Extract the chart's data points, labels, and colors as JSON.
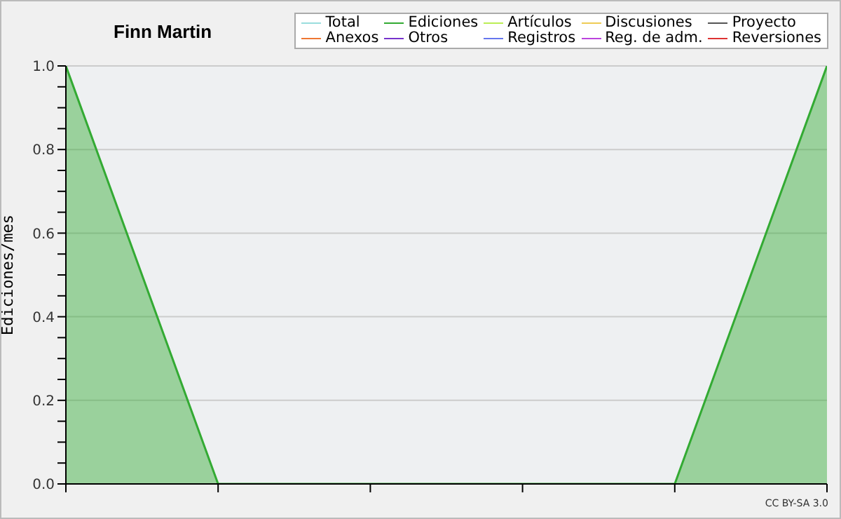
{
  "chart_data": {
    "type": "area",
    "title": "Finn Martin",
    "ylabel": "Ediciones/mes",
    "categories": [
      null,
      null,
      null,
      null,
      null,
      null
    ],
    "series": [
      {
        "name": "Total",
        "color": "#99dddd",
        "values": [
          null,
          null,
          null,
          null,
          null,
          null
        ]
      },
      {
        "name": "Ediciones",
        "color": "#33aa33",
        "values": [
          1,
          0,
          0,
          0,
          0,
          1
        ]
      },
      {
        "name": "Artículos",
        "color": "#bbee55",
        "values": [
          null,
          null,
          null,
          null,
          null,
          null
        ]
      },
      {
        "name": "Discusiones",
        "color": "#eecc55",
        "values": [
          null,
          null,
          null,
          null,
          null,
          null
        ]
      },
      {
        "name": "Proyecto",
        "color": "#555555",
        "values": [
          null,
          null,
          null,
          null,
          null,
          null
        ]
      },
      {
        "name": "Anexos",
        "color": "#ee7733",
        "values": [
          null,
          null,
          null,
          null,
          null,
          null
        ]
      },
      {
        "name": "Otros",
        "color": "#7733cc",
        "values": [
          null,
          null,
          null,
          null,
          null,
          null
        ]
      },
      {
        "name": "Registros",
        "color": "#6677ee",
        "values": [
          null,
          null,
          null,
          null,
          null,
          null
        ]
      },
      {
        "name": "Reg. de adm.",
        "color": "#bb44dd",
        "values": [
          null,
          null,
          null,
          null,
          null,
          null
        ]
      },
      {
        "name": "Reversiones",
        "color": "#dd3333",
        "values": [
          null,
          null,
          null,
          null,
          null,
          null
        ]
      }
    ],
    "ylim": [
      0,
      1
    ],
    "yticks": [
      {
        "value": 0,
        "label": "0.0"
      },
      {
        "value": 0.05,
        "label": null
      },
      {
        "value": 0.1,
        "label": null
      },
      {
        "value": 0.15,
        "label": null
      },
      {
        "value": 0.2,
        "label": "0.2"
      },
      {
        "value": 0.25,
        "label": null
      },
      {
        "value": 0.3,
        "label": null
      },
      {
        "value": 0.35,
        "label": null
      },
      {
        "value": 0.4,
        "label": "0.4"
      },
      {
        "value": 0.45,
        "label": null
      },
      {
        "value": 0.5,
        "label": null
      },
      {
        "value": 0.55,
        "label": null
      },
      {
        "value": 0.6,
        "label": "0.6"
      },
      {
        "value": 0.65,
        "label": null
      },
      {
        "value": 0.7,
        "label": null
      },
      {
        "value": 0.75,
        "label": null
      },
      {
        "value": 0.8,
        "label": "0.8"
      },
      {
        "value": 0.85,
        "label": null
      },
      {
        "value": 0.9,
        "label": null
      },
      {
        "value": 0.95,
        "label": null
      },
      {
        "value": 1,
        "label": "1.0"
      }
    ],
    "grid": "y",
    "legend": "top right",
    "annotations": [
      "CC BY-SA 3.0"
    ]
  }
}
